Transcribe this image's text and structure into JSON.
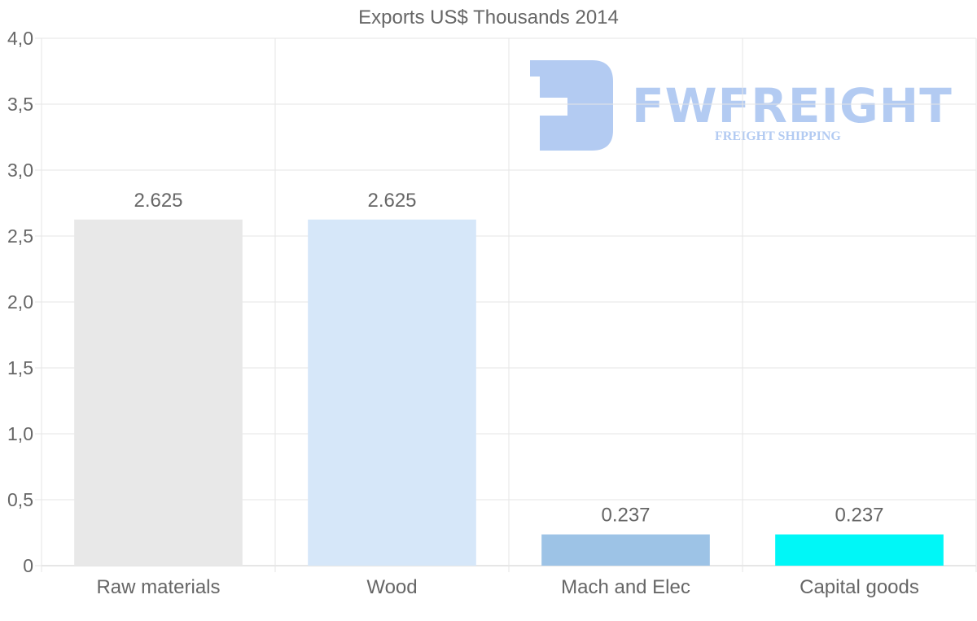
{
  "chart_data": {
    "type": "bar",
    "title": "Exports US$ Thousands 2014",
    "categories": [
      "Raw materials",
      "Wood",
      "Mach and Elec",
      "Capital goods"
    ],
    "values": [
      2.625,
      2.625,
      0.237,
      0.237
    ],
    "value_labels": [
      "2.625",
      "2.625",
      "0.237",
      "0.237"
    ],
    "colors": [
      "#e8e8e8",
      "#d6e7f9",
      "#9dc3e6",
      "#00f7f7"
    ],
    "xlabel": "",
    "ylabel": "",
    "ylim": [
      0,
      4
    ],
    "yticks": [
      0,
      0.5,
      1,
      1.5,
      2,
      2.5,
      3,
      3.5,
      4
    ],
    "ytick_labels": [
      "0",
      "0,5",
      "1,0",
      "1,5",
      "2,0",
      "2,5",
      "3,0",
      "3,5",
      "4,0"
    ],
    "grid": true
  },
  "watermark": {
    "brand": "FWFREIGHT",
    "tagline": "FREIGHT SHIPPING"
  }
}
